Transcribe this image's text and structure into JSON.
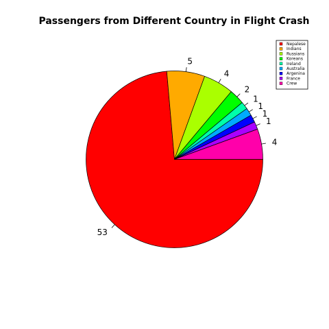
{
  "chart_data": {
    "type": "pie",
    "title": "Passengers from Different Country in Flight Crash",
    "slices": [
      {
        "label": "Nepalese",
        "value": 53,
        "color": "#FF0000"
      },
      {
        "label": "Indians",
        "value": 5,
        "color": "#FFAA00"
      },
      {
        "label": "Russians",
        "value": 4,
        "color": "#AAFF00"
      },
      {
        "label": "Koreans",
        "value": 2,
        "color": "#00FF00"
      },
      {
        "label": "Ireland",
        "value": 1,
        "color": "#00FFAA"
      },
      {
        "label": "Australia",
        "value": 1,
        "color": "#00AAFF"
      },
      {
        "label": "Argenina",
        "value": 1,
        "color": "#0000FF"
      },
      {
        "label": "France",
        "value": 1,
        "color": "#AA00FF"
      },
      {
        "label": "Crew",
        "value": 4,
        "color": "#FF00AA"
      }
    ],
    "start_angle_deg": 0,
    "direction": "clockwise",
    "legend_position": "top-right"
  }
}
